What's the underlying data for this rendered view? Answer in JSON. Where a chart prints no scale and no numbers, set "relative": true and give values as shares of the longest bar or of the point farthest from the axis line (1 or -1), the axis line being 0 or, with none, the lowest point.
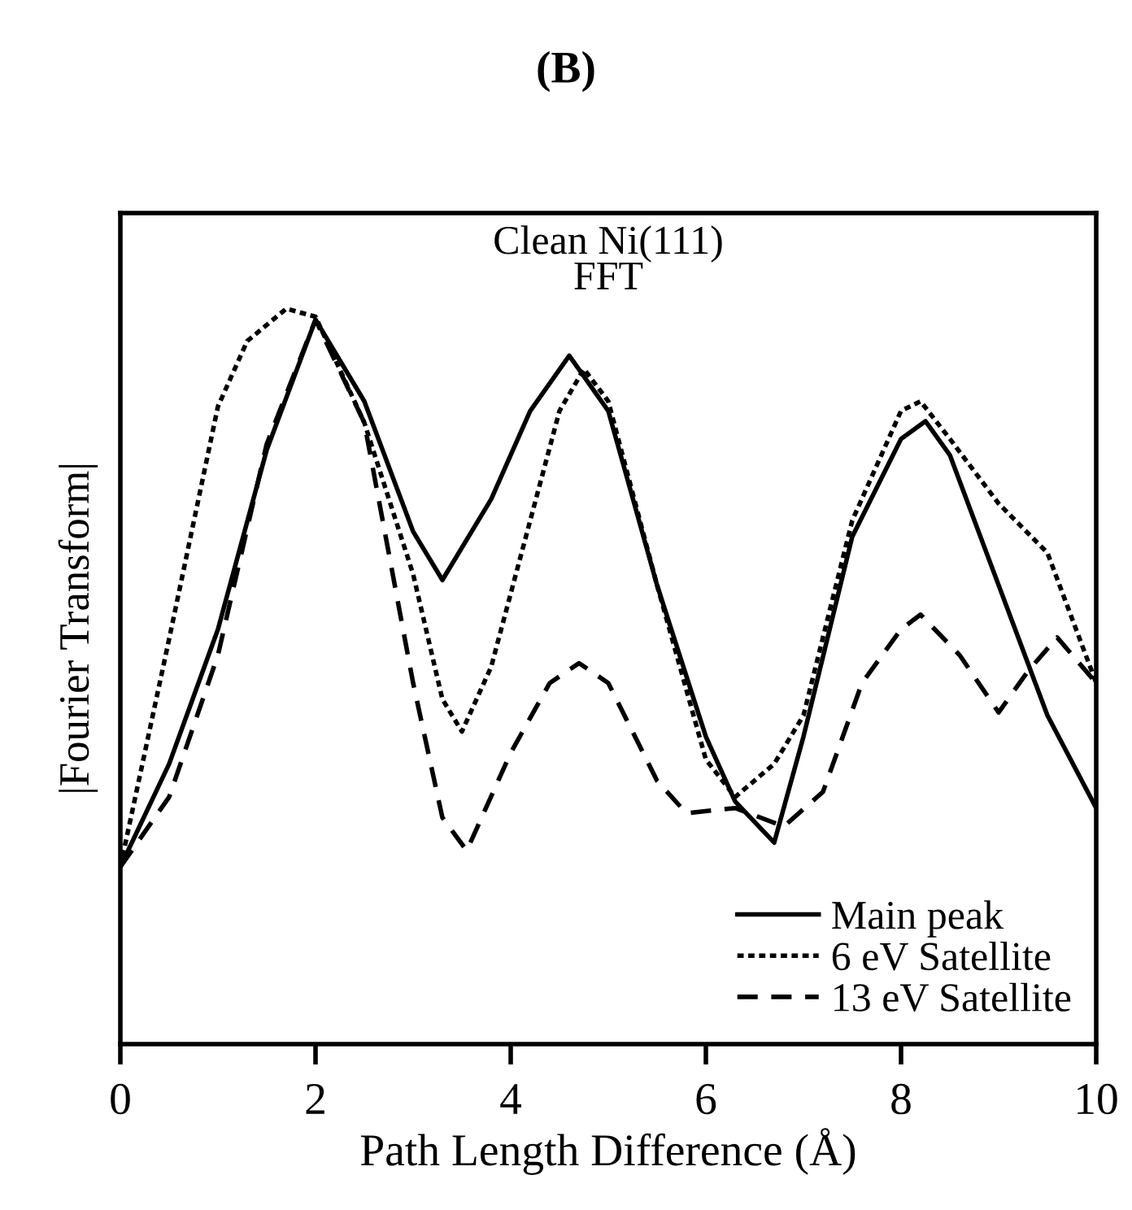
{
  "chart_data": {
    "type": "line",
    "title": "(B)",
    "xlabel": "Path Length Difference (Å)",
    "ylabel": "|Fourier Transform|",
    "annotations": [
      "Clean Ni(111)\nFFT"
    ],
    "relative": true,
    "xlim": [
      0,
      10
    ],
    "xticks": [
      0,
      2,
      4,
      6,
      8,
      10
    ],
    "tick_labels": "x",
    "grid": false,
    "legend": "bottom right",
    "marker": "none",
    "series": [
      {
        "name": "Main peak",
        "color": "#000000",
        "line_style": "solid",
        "x": [
          0,
          0.5,
          1.0,
          1.5,
          2.0,
          2.5,
          3.0,
          3.3,
          3.8,
          4.2,
          4.6,
          5.0,
          5.5,
          6.0,
          6.3,
          6.7,
          7.0,
          7.5,
          8.0,
          8.25,
          8.5,
          9.0,
          9.5,
          10
        ],
        "values": [
          0.241,
          0.381,
          0.564,
          0.808,
          0.985,
          0.874,
          0.697,
          0.631,
          0.741,
          0.861,
          0.936,
          0.861,
          0.624,
          0.418,
          0.33,
          0.274,
          0.418,
          0.69,
          0.823,
          0.847,
          0.801,
          0.624,
          0.447,
          0.321
        ]
      },
      {
        "name": "6 eV Satellite",
        "color": "#000000",
        "line_style": "dotted",
        "x": [
          0,
          0.5,
          1.0,
          1.3,
          1.7,
          2.0,
          2.5,
          3.0,
          3.3,
          3.5,
          3.8,
          4.2,
          4.5,
          4.75,
          5.0,
          5.5,
          6.0,
          6.3,
          6.7,
          7.0,
          7.5,
          8.0,
          8.2,
          8.5,
          9.0,
          9.5,
          10
        ],
        "values": [
          0.241,
          0.551,
          0.867,
          0.956,
          1.0,
          0.989,
          0.845,
          0.639,
          0.469,
          0.425,
          0.513,
          0.712,
          0.861,
          0.918,
          0.874,
          0.624,
          0.387,
          0.336,
          0.381,
          0.447,
          0.712,
          0.861,
          0.874,
          0.823,
          0.735,
          0.668,
          0.491
        ]
      },
      {
        "name": "13 eV Satellite",
        "color": "#000000",
        "line_style": "dashed",
        "x": [
          0,
          0.5,
          1.0,
          1.5,
          2.0,
          2.5,
          3.0,
          3.3,
          3.55,
          4.0,
          4.4,
          4.7,
          5.0,
          5.5,
          5.8,
          6.3,
          6.8,
          7.2,
          7.6,
          8.0,
          8.2,
          8.6,
          9.0,
          9.3,
          9.6,
          10
        ],
        "values": [
          0.241,
          0.336,
          0.529,
          0.816,
          0.985,
          0.845,
          0.491,
          0.308,
          0.263,
          0.396,
          0.491,
          0.518,
          0.491,
          0.358,
          0.314,
          0.321,
          0.296,
          0.343,
          0.491,
          0.564,
          0.584,
          0.529,
          0.451,
          0.507,
          0.553,
          0.491
        ]
      }
    ]
  }
}
